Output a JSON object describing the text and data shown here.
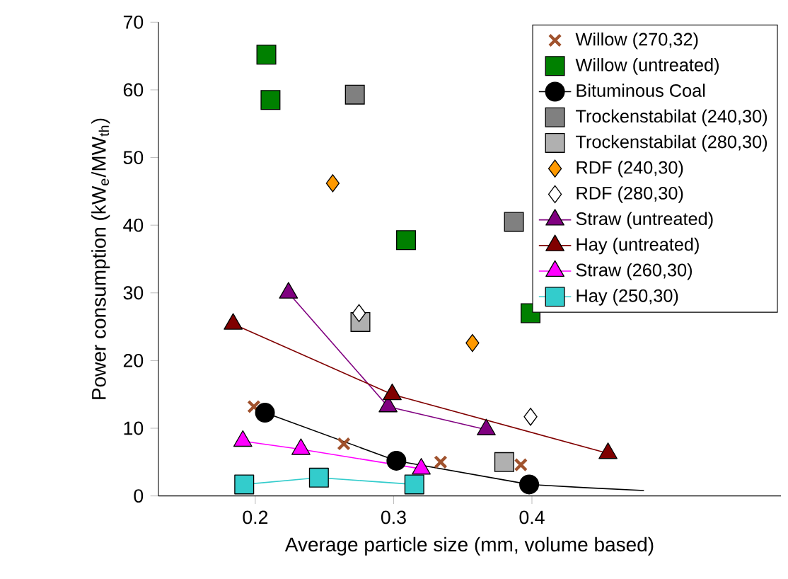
{
  "chart_data": {
    "type": "scatter",
    "xlabel": "Average particle size (mm, volume based)",
    "ylabel": "Power consumption (kW$_{e}$/MW$_{th}$)",
    "xlim": [
      0.13,
      0.58
    ],
    "ylim": [
      0,
      70
    ],
    "xticks": [
      0.2,
      0.3,
      0.4
    ],
    "yticks": [
      0,
      10,
      20,
      30,
      40,
      50,
      60,
      70
    ],
    "legend": "top right",
    "grid": false,
    "series": [
      {
        "name": "Willow (270,32)",
        "marker": "cross",
        "color": "#a0522d",
        "x": [
          0.199,
          0.264,
          0.334,
          0.392
        ],
        "values": [
          13.2,
          7.7,
          5.0,
          4.6
        ]
      },
      {
        "name": "Willow (untreated)",
        "marker": "square",
        "color": "#008000",
        "x": [
          0.208,
          0.211,
          0.309,
          0.399
        ],
        "values": [
          65.2,
          58.5,
          37.8,
          27.0
        ]
      },
      {
        "name": "Bituminous Coal",
        "type": "line",
        "marker": "circle",
        "color": "#000000",
        "x": [
          0.207,
          0.302,
          0.398
        ],
        "values": [
          12.3,
          5.2,
          1.7
        ]
      },
      {
        "type": "line",
        "marker": "none",
        "color": "#000000",
        "x": [
          0.398,
          0.44,
          0.481
        ],
        "values": [
          1.7,
          1.2,
          0.8
        ]
      },
      {
        "name": "Trockenstabilat (240,30)",
        "marker": "square",
        "color": "#808080",
        "x": [
          0.272,
          0.387
        ],
        "values": [
          59.3,
          40.5
        ]
      },
      {
        "name": "Trockenstabilat (280,30)",
        "marker": "square",
        "color": "#b0b0b0",
        "x": [
          0.276,
          0.38
        ],
        "values": [
          25.7,
          5.0
        ]
      },
      {
        "name": "RDF (240,30)",
        "marker": "diamond",
        "color": "#ff9900",
        "x": [
          0.256,
          0.357
        ],
        "values": [
          46.2,
          22.6
        ]
      },
      {
        "name": "RDF (280,30)",
        "marker": "diamond",
        "color": "#ffffff",
        "x": [
          0.275,
          0.399
        ],
        "values": [
          27.0,
          11.7
        ]
      },
      {
        "name": "Straw (untreated)",
        "type": "line",
        "marker": "triangle",
        "color": "#800080",
        "x": [
          0.224,
          0.296,
          0.367
        ],
        "values": [
          30.0,
          13.2,
          9.8
        ]
      },
      {
        "name": "Hay (untreated)",
        "type": "line",
        "marker": "triangle",
        "color": "#800000",
        "x": [
          0.184,
          0.299,
          0.455
        ],
        "values": [
          25.4,
          15.0,
          6.3
        ]
      },
      {
        "name": "Straw (260,30)",
        "type": "line",
        "marker": "triangle",
        "color": "#ff00ff",
        "x": [
          0.191,
          0.233,
          0.32
        ],
        "values": [
          8.1,
          6.9,
          4.0
        ]
      },
      {
        "name": "Hay (250,30)",
        "type": "line",
        "marker": "square",
        "color": "#33cccc",
        "x": [
          0.192,
          0.246,
          0.315
        ],
        "values": [
          1.7,
          2.7,
          1.7
        ]
      }
    ]
  }
}
